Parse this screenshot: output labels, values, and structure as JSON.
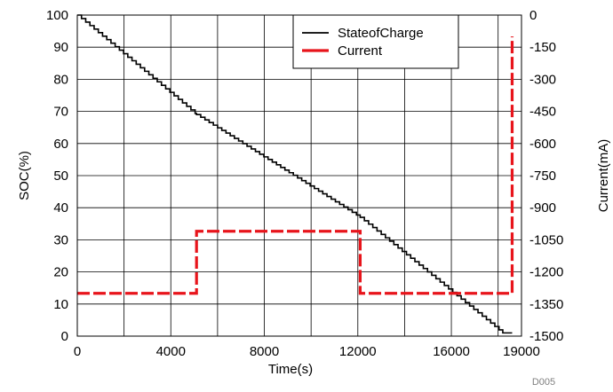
{
  "chart_data": {
    "type": "line",
    "xlabel": "Time(s)",
    "ylabel_left": "SOC(%)",
    "ylabel_right": "Current(mA)",
    "xlim": [
      0,
      19000
    ],
    "ylim_left": [
      0,
      100
    ],
    "ylim_right": [
      -1500,
      0
    ],
    "x_ticks": [
      0,
      4000,
      8000,
      12000,
      16000,
      19000
    ],
    "y_left_ticks": [
      0,
      10,
      20,
      30,
      40,
      50,
      60,
      70,
      80,
      90,
      100
    ],
    "y_right_ticks": [
      0,
      -150,
      -300,
      -450,
      -600,
      -750,
      -900,
      -1050,
      -1200,
      -1350,
      -1500
    ],
    "grid": true,
    "legend_position": "top-right",
    "footnote": "D005",
    "series": [
      {
        "name": "StateofCharge",
        "axis": "left",
        "color": "#000000",
        "style": "solid-stepped",
        "x": [
          0,
          5100,
          12100,
          18200,
          18600
        ],
        "y": [
          100,
          69,
          37,
          1,
          1
        ]
      },
      {
        "name": "Current",
        "axis": "right",
        "color": "#e8141b",
        "style": "dashed",
        "x": [
          0,
          5100,
          5100,
          12100,
          12100,
          18600,
          18600
        ],
        "y": [
          -1300,
          -1300,
          -1010,
          -1010,
          -1300,
          -1300,
          -100
        ]
      }
    ]
  }
}
